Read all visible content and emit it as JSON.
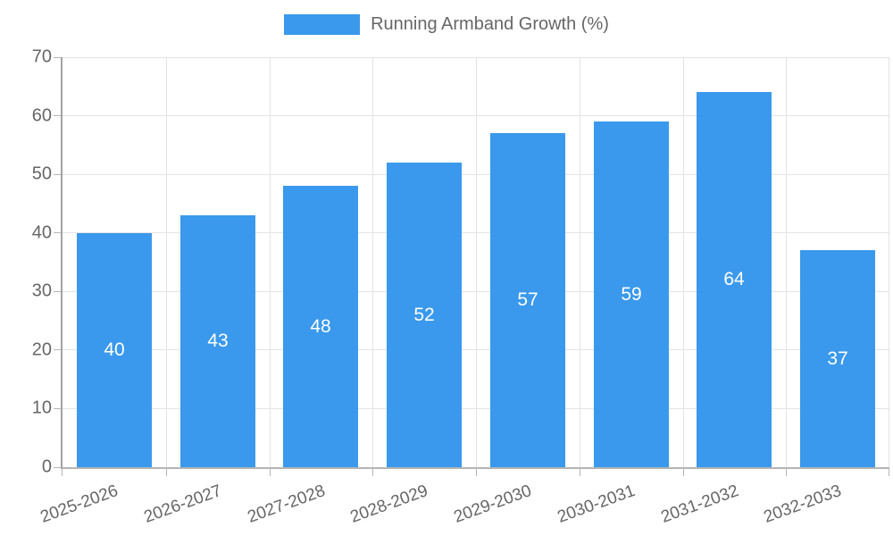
{
  "legend": {
    "label": "Running Armband Growth (%)"
  },
  "colors": {
    "bar": "#3a99ec",
    "text": "#666666",
    "grid": "#e3e3e3",
    "axis": "#b5b5b5",
    "bar_label_text": "#ffffff"
  },
  "chart_data": {
    "type": "bar",
    "title": "Running Armband Growth (%)",
    "categories": [
      "2025-2026",
      "2026-2027",
      "2027-2028",
      "2028-2029",
      "2029-2030",
      "2030-2031",
      "2031-2032",
      "2032-2033"
    ],
    "values": [
      40,
      43,
      48,
      52,
      57,
      59,
      64,
      37
    ],
    "xlabel": "",
    "ylabel": "",
    "ylim": [
      0,
      70
    ],
    "ytick_step": 10,
    "yticks": [
      0,
      10,
      20,
      30,
      40,
      50,
      60,
      70
    ],
    "grid": true,
    "legend_position": "top",
    "bar_labels_inside": true,
    "x_label_rotation_deg": -20
  }
}
